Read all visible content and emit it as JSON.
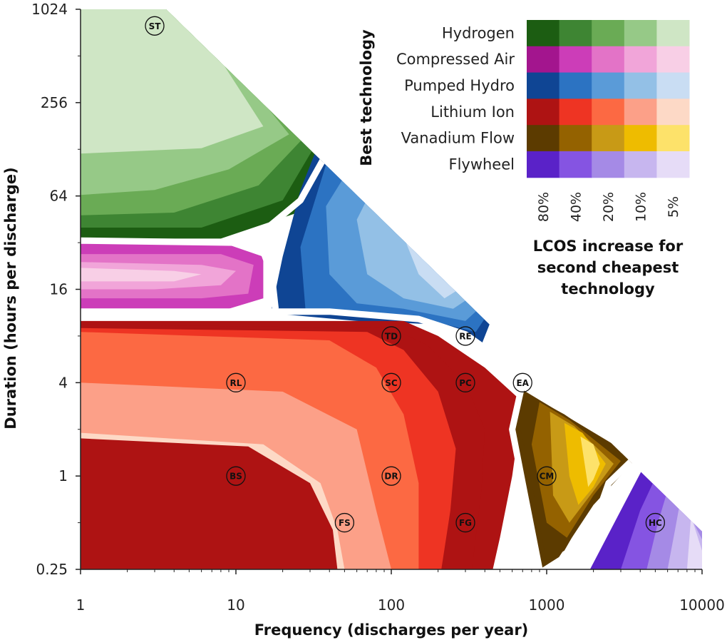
{
  "chart_data": {
    "type": "heatmap",
    "title": "",
    "xlabel": "Frequency (discharges per year)",
    "ylabel": "Duration (hours per discharge)",
    "x_scale": "log",
    "y_scale": "log",
    "xlim": [
      1,
      10000
    ],
    "ylim": [
      0.25,
      1024
    ],
    "x_ticks": [
      1,
      10,
      100,
      1000,
      10000
    ],
    "x_tick_labels": [
      "1",
      "10",
      "100",
      "1000",
      "10000"
    ],
    "y_ticks": [
      0.25,
      1,
      4,
      16,
      64,
      256,
      1024
    ],
    "y_tick_labels": [
      "0.25",
      "1",
      "4",
      "16",
      "64",
      "256",
      "1024"
    ],
    "legend": {
      "title": "Best technology",
      "placement": "top-right",
      "technologies": [
        {
          "name": "Hydrogen",
          "colors": [
            "#1c5d12",
            "#3e8533",
            "#6aab55",
            "#96c987",
            "#cfe6c5"
          ]
        },
        {
          "name": "Compressed Air",
          "colors": [
            "#a3158e",
            "#cc3db8",
            "#e373c7",
            "#f1a5d9",
            "#f8cfe6"
          ]
        },
        {
          "name": "Pumped Hydro",
          "colors": [
            "#0f4594",
            "#2c73c2",
            "#5a9bd8",
            "#93c0e6",
            "#c9ddf3"
          ]
        },
        {
          "name": "Lithium Ion",
          "colors": [
            "#ae1313",
            "#ee3423",
            "#fc6943",
            "#fca088",
            "#fdd9c6"
          ]
        },
        {
          "name": "Vanadium Flow",
          "colors": [
            "#5c3b00",
            "#946200",
            "#c89a16",
            "#eebc00",
            "#fde26a"
          ]
        },
        {
          "name": "Flywheel",
          "colors": [
            "#5a22c8",
            "#8554e2",
            "#a58ae6",
            "#c7b6ef",
            "#e6dcf7"
          ]
        }
      ],
      "levels": [
        "80%",
        "40%",
        "20%",
        "10%",
        "5%"
      ],
      "level_axis_title": "LCOS increase for second cheapest technology"
    },
    "applications": [
      {
        "code": "ST",
        "frequency": 3,
        "duration": 800
      },
      {
        "code": "TD",
        "frequency": 100,
        "duration": 8
      },
      {
        "code": "RE",
        "frequency": 300,
        "duration": 8
      },
      {
        "code": "RL",
        "frequency": 10,
        "duration": 4
      },
      {
        "code": "SC",
        "frequency": 100,
        "duration": 4
      },
      {
        "code": "PC",
        "frequency": 300,
        "duration": 4
      },
      {
        "code": "EA",
        "frequency": 700,
        "duration": 4
      },
      {
        "code": "BS",
        "frequency": 10,
        "duration": 1
      },
      {
        "code": "DR",
        "frequency": 100,
        "duration": 1
      },
      {
        "code": "CM",
        "frequency": 1000,
        "duration": 1
      },
      {
        "code": "FS",
        "frequency": 50,
        "duration": 0.5
      },
      {
        "code": "FG",
        "frequency": 300,
        "duration": 0.5
      },
      {
        "code": "HC",
        "frequency": 5000,
        "duration": 0.5
      }
    ],
    "regions": [
      {
        "technology": "Hydrogen",
        "anchor": [
          3,
          512
        ]
      },
      {
        "technology": "Compressed Air",
        "anchor": [
          2,
          24
        ]
      },
      {
        "technology": "Pumped Hydro",
        "anchor": [
          150,
          16
        ]
      },
      {
        "technology": "Lithium Ion",
        "anchor": [
          10,
          1
        ]
      },
      {
        "technology": "Vanadium Flow",
        "anchor": [
          1900,
          1
        ]
      },
      {
        "technology": "Flywheel",
        "anchor": [
          7000,
          0.3
        ]
      }
    ]
  }
}
